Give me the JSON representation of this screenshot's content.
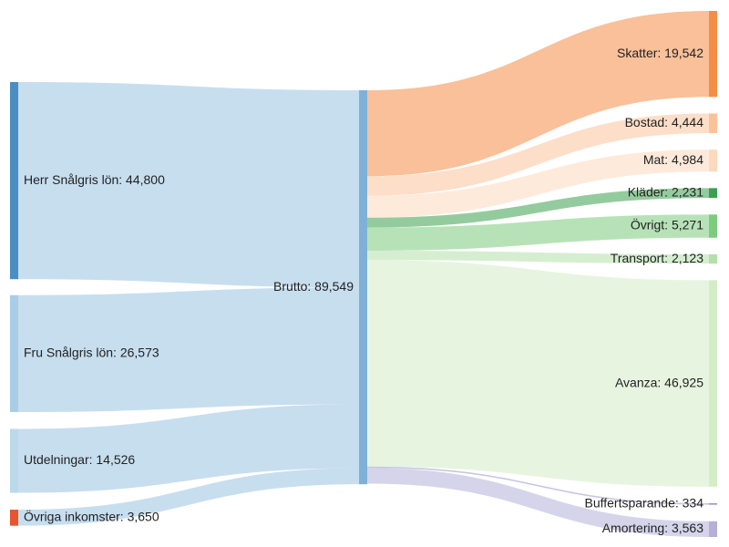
{
  "chart_data": {
    "type": "sankey",
    "nodes": [
      {
        "id": "herr",
        "name": "Herr Snålgris lön",
        "value": 44800,
        "color": "#4a8ec4",
        "side": "source"
      },
      {
        "id": "fru",
        "name": "Fru Snålgris lön",
        "value": 26573,
        "color": "#a9cde6",
        "side": "source"
      },
      {
        "id": "utd",
        "name": "Utdelningar",
        "value": 14526,
        "color": "#bcd9ec",
        "side": "source"
      },
      {
        "id": "ovr_ink",
        "name": "Övriga inkomster",
        "value": 3650,
        "color": "#e6552e",
        "side": "source"
      },
      {
        "id": "brutto",
        "name": "Brutto",
        "value": 89549,
        "color": "#7fb1d8",
        "side": "middle"
      },
      {
        "id": "skatter",
        "name": "Skatter",
        "value": 19542,
        "color": "#f48d45",
        "side": "target"
      },
      {
        "id": "bostad",
        "name": "Bostad",
        "value": 4444,
        "color": "#fbc29a",
        "side": "target"
      },
      {
        "id": "mat",
        "name": "Mat",
        "value": 4984,
        "color": "#fdd9bd",
        "side": "target"
      },
      {
        "id": "klader",
        "name": "Kläder",
        "value": 2231,
        "color": "#3ca04f",
        "side": "target"
      },
      {
        "id": "ovrigt",
        "name": "Övrigt",
        "value": 5271,
        "color": "#7ccb7e",
        "side": "target"
      },
      {
        "id": "transport",
        "name": "Transport",
        "value": 2123,
        "color": "#b2e0a9",
        "side": "target"
      },
      {
        "id": "avanza",
        "name": "Avanza",
        "value": 46925,
        "color": "#d4edc6",
        "side": "target"
      },
      {
        "id": "buffert",
        "name": "Buffertsparande",
        "value": 334,
        "color": "#9a97cb",
        "side": "target"
      },
      {
        "id": "amort",
        "name": "Amortering",
        "value": 3563,
        "color": "#b4b0d8",
        "side": "target"
      }
    ],
    "links": [
      {
        "source": "herr",
        "target": "brutto",
        "value": 44800
      },
      {
        "source": "fru",
        "target": "brutto",
        "value": 26573
      },
      {
        "source": "utd",
        "target": "brutto",
        "value": 14526
      },
      {
        "source": "ovr_ink",
        "target": "brutto",
        "value": 3650
      },
      {
        "source": "brutto",
        "target": "skatter",
        "value": 19542
      },
      {
        "source": "brutto",
        "target": "bostad",
        "value": 4444
      },
      {
        "source": "brutto",
        "target": "mat",
        "value": 4984
      },
      {
        "source": "brutto",
        "target": "klader",
        "value": 2231
      },
      {
        "source": "brutto",
        "target": "ovrigt",
        "value": 5271
      },
      {
        "source": "brutto",
        "target": "transport",
        "value": 2123
      },
      {
        "source": "brutto",
        "target": "avanza",
        "value": 46925
      },
      {
        "source": "brutto",
        "target": "buffert",
        "value": 334
      },
      {
        "source": "brutto",
        "target": "amort",
        "value": 3563
      }
    ],
    "value_format": "comma-thousands",
    "label_separator": ": "
  }
}
